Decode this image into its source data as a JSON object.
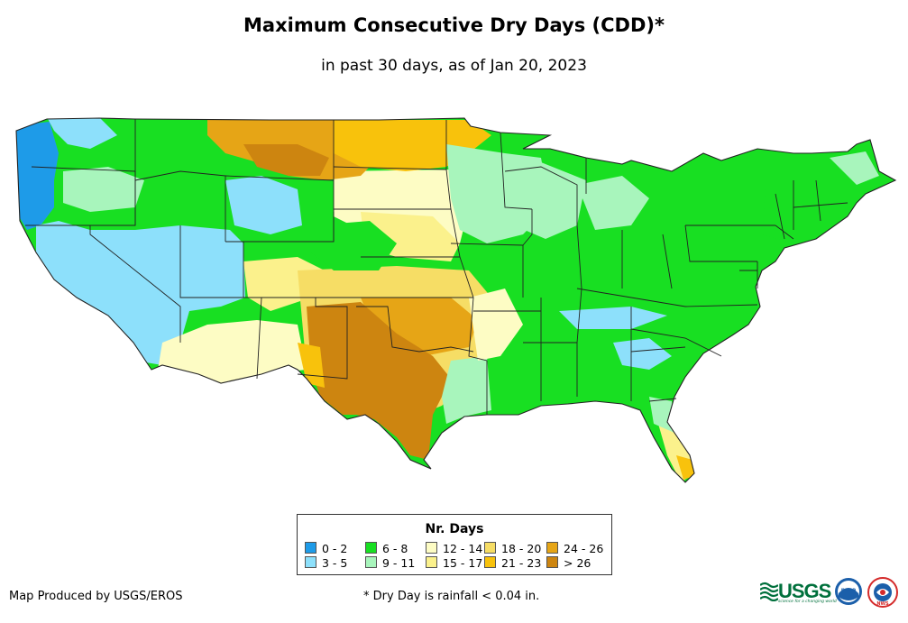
{
  "header": {
    "title": "Maximum Consecutive Dry Days (CDD)*",
    "subtitle": "in past 30 days, as of Jan 20, 2023"
  },
  "legend": {
    "title": "Nr. Days",
    "items": [
      {
        "label": "0 - 2",
        "color": "#1e9be8"
      },
      {
        "label": "3 - 5",
        "color": "#8de0fb"
      },
      {
        "label": "6 - 8",
        "color": "#18df22"
      },
      {
        "label": "9 - 11",
        "color": "#a8f5bc"
      },
      {
        "label": "12 - 14",
        "color": "#fdfcc4"
      },
      {
        "label": "15 - 17",
        "color": "#fbf18c"
      },
      {
        "label": "18 - 20",
        "color": "#f6dd65"
      },
      {
        "label": "21 - 23",
        "color": "#f8c20c"
      },
      {
        "label": "24 - 26",
        "color": "#e6a516"
      },
      {
        "label": "> 26",
        "color": "#cd8510"
      }
    ]
  },
  "footer": {
    "credit": "Map Produced by USGS/EROS",
    "footnote": "* Dry Day is rainfall < 0.04 in."
  },
  "logos": {
    "usgs_text": "USGS",
    "usgs_tagline": "science for a changing world",
    "noaa_text": "noaa",
    "nws_text": "NWS"
  }
}
